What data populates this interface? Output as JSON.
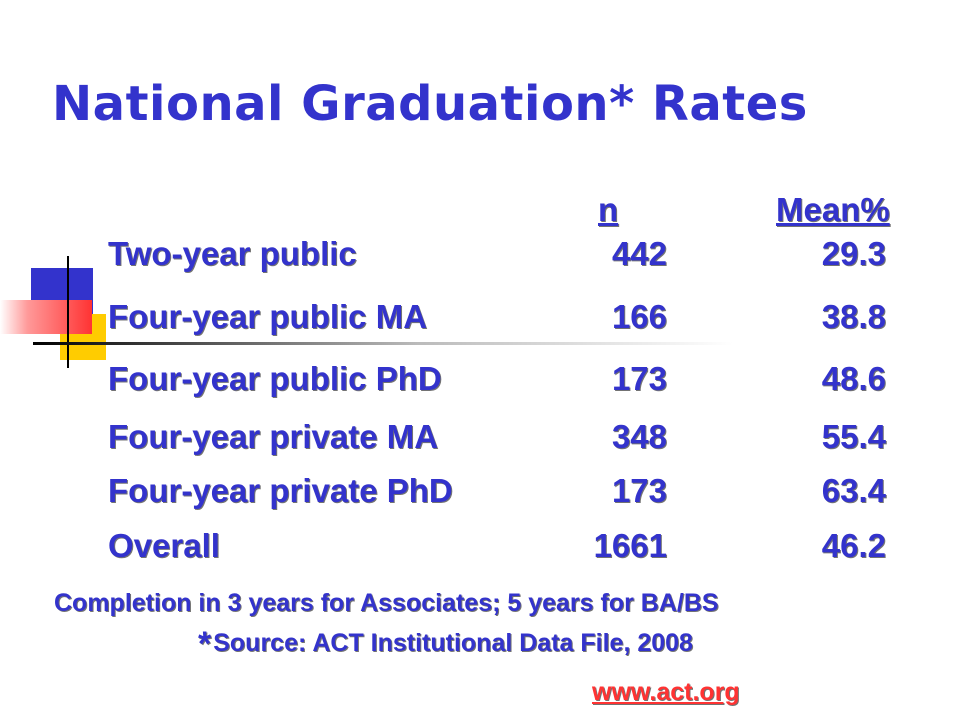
{
  "slide": {
    "title": "National Graduation* Rates",
    "headers": {
      "n": "n",
      "mean": "Mean%"
    },
    "rows": [
      {
        "label": "Two-year public",
        "n": "442",
        "mean": "29.3"
      },
      {
        "label": "Four-year public MA",
        "n": "166",
        "mean": "38.8"
      },
      {
        "label": "Four-year public PhD",
        "n": "173",
        "mean": "48.6"
      },
      {
        "label": "Four-year private MA",
        "n": "348",
        "mean": "55.4"
      },
      {
        "label": "Four-year private PhD",
        "n": "173",
        "mean": "63.4"
      },
      {
        "label": "Overall",
        "n": "1661",
        "mean": "46.2"
      }
    ],
    "note_completion": "Completion in 3 years for Associates; 5 years for BA/BS",
    "note_star": "*",
    "note_source": "Source: ACT Institutional Data File, 2008",
    "link": "www.act.org"
  },
  "colors": {
    "text": "#3333cc",
    "link": "#ff3333",
    "deco_blue": "#3333cc",
    "deco_yellow": "#ffcc00",
    "deco_red": "#ff3333"
  }
}
